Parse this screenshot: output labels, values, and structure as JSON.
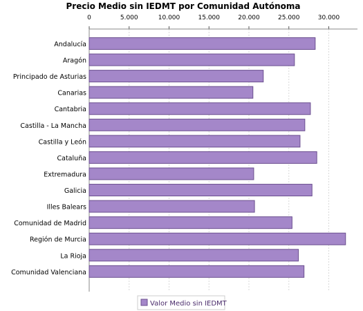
{
  "chart_data": {
    "type": "bar",
    "orientation": "horizontal",
    "title": "Precio Medio sin IEDMT por Comunidad Autónoma",
    "xlabel": "",
    "ylabel": "",
    "categories": [
      "Andalucía",
      "Aragón",
      "Principado de Asturias",
      "Canarias",
      "Cantabria",
      "Castilla - La Mancha",
      "Castilla y León",
      "Cataluña",
      "Extremadura",
      "Galicia",
      "Illes Balears",
      "Comunidad de Madrid",
      "Región de Murcia",
      "La Rioja",
      "Comunidad Valenciana"
    ],
    "series": [
      {
        "name": "Valor Medio sin IEDMT",
        "values": [
          28300,
          25700,
          21800,
          20500,
          27700,
          27000,
          26400,
          28500,
          20600,
          27900,
          20700,
          25400,
          32100,
          26200,
          26900
        ]
      }
    ],
    "xlim": [
      0,
      33000
    ],
    "xticks": [
      0,
      5000,
      10000,
      15000,
      20000,
      25000,
      30000
    ],
    "xtick_labels": [
      "0",
      "5.000",
      "10.000",
      "15.000",
      "20.000",
      "25.000",
      "30.000"
    ],
    "grid": true,
    "axis_position": "top",
    "legend_position": "bottom",
    "colors": {
      "bar_fill": "#a487c9",
      "bar_stroke": "#6b4f8f",
      "legend_text": "#4a2b6b",
      "grid": "#d8d8d8"
    }
  }
}
